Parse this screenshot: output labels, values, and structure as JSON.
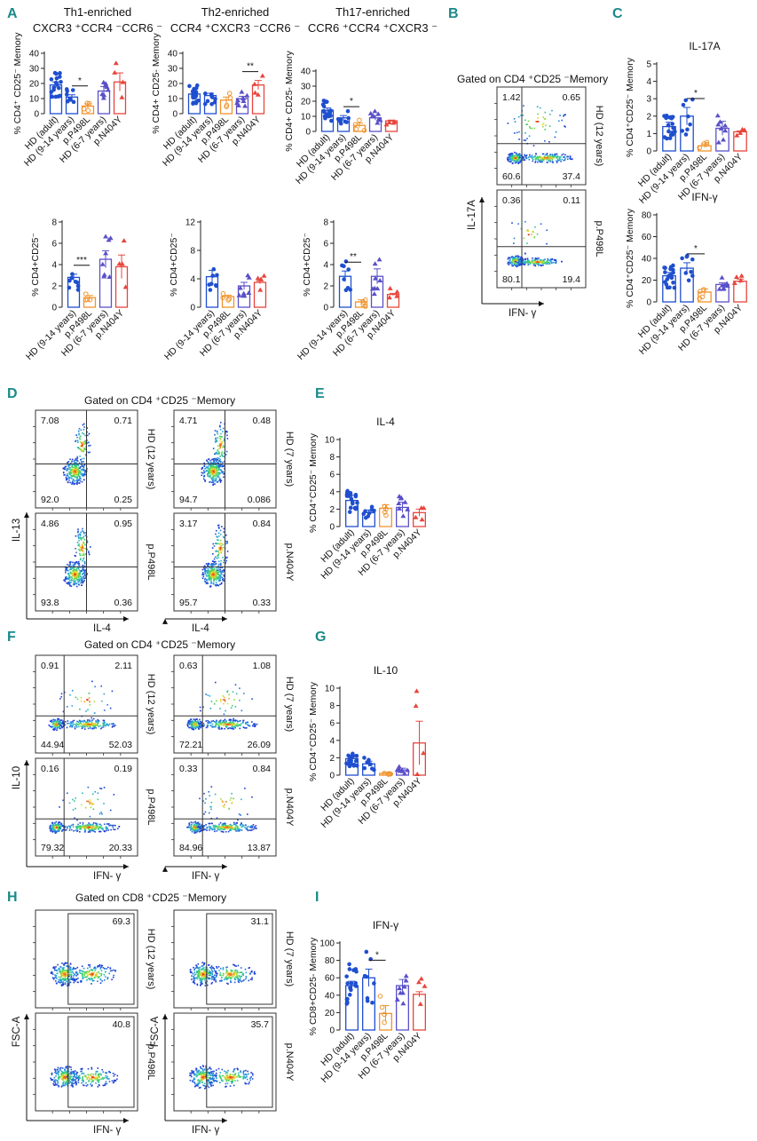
{
  "colors": {
    "teal": "#1a8a8a",
    "blue": "#1f4fcf",
    "orange": "#f0932b",
    "red": "#e8453c",
    "purple": "#5a50c8",
    "axis": "#222222"
  },
  "panels": {
    "A": "A",
    "B": "B",
    "C": "C",
    "D": "D",
    "E": "E",
    "F": "F",
    "G": "G",
    "H": "H",
    "I": "I"
  },
  "headers": {
    "th1_title": "Th1-enriched",
    "th1_markers": "CXCR3 ⁺CCR4 ⁻CCR6 ⁻",
    "th2_title": "Th2-enriched",
    "th2_markers": "CCR4 ⁺CXCR3 ⁻CCR6 ⁻",
    "th17_title": "Th17-enriched",
    "th17_markers": "CCR6 ⁺CCR4 ⁺CXCR3 ⁻"
  },
  "gating": {
    "B": "Gated on CD4 ⁺CD25 ⁻Memory",
    "D": "Gated on CD4 ⁺CD25 ⁻Memory",
    "F": "Gated on CD4 ⁺CD25 ⁻Memory",
    "H": "Gated on CD8 ⁺CD25 ⁻Memory"
  },
  "flow": {
    "B": [
      {
        "q": [
          "1.42",
          "0.65",
          "60.6",
          "37.4"
        ],
        "label": "HD (12 years)"
      },
      {
        "q": [
          "0.36",
          "0.11",
          "80.1",
          "19.4"
        ],
        "label": "p.P498L"
      }
    ],
    "B_axes": {
      "x": "IFN- γ",
      "y": "IL-17A"
    },
    "D": [
      {
        "q": [
          "7.08",
          "0.71",
          "92.0",
          "0.25"
        ],
        "label": "HD (12 years)"
      },
      {
        "q": [
          "4.71",
          "0.48",
          "94.7",
          "0.086"
        ],
        "label": "HD (7 years)"
      },
      {
        "q": [
          "4.86",
          "0.95",
          "93.8",
          "0.36"
        ],
        "label": "p.P498L"
      },
      {
        "q": [
          "3.17",
          "0.84",
          "95.7",
          "0.33"
        ],
        "label": "p.N404Y"
      }
    ],
    "D_axes": {
      "x": "IL-4",
      "y": "IL-13"
    },
    "F": [
      {
        "q": [
          "0.91",
          "2.11",
          "44.94",
          "52.03"
        ],
        "label": "HD (12 years)"
      },
      {
        "q": [
          "0.63",
          "1.08",
          "72.21",
          "26.09"
        ],
        "label": "HD (7 years)"
      },
      {
        "q": [
          "0.16",
          "0.19",
          "79.32",
          "20.33"
        ],
        "label": "p.P498L"
      },
      {
        "q": [
          "0.33",
          "0.84",
          "84.96",
          "13.87"
        ],
        "label": "p.N404Y"
      }
    ],
    "F_axes": {
      "x": "IFN- γ",
      "y": "IL-10"
    },
    "H": [
      {
        "gate": "69.3",
        "label": "HD (12 years)"
      },
      {
        "gate": "31.1",
        "label": "HD (7 years)"
      },
      {
        "gate": "40.8",
        "label": "p.P498L"
      },
      {
        "gate": "35.7",
        "label": "p.N404Y"
      }
    ],
    "H_axes": {
      "x": "IFN- γ",
      "y": "FSC-A"
    }
  },
  "chart_data": [
    {
      "id": "A_th1",
      "type": "bar",
      "title": "",
      "ylabel": "% CD4⁺ CD25⁻ Memory",
      "ylim": [
        0,
        40
      ],
      "ticks": [
        0,
        10,
        20,
        30,
        40
      ],
      "categories": [
        "HD (adult)",
        "HD (9-14 years)",
        "p.P498L",
        "HD (6-7 years)",
        "p.N404Y"
      ],
      "values": [
        19,
        11,
        5,
        15,
        21
      ],
      "errors": [
        2,
        1.5,
        1.5,
        3,
        6
      ],
      "annotations": [
        {
          "from": 1,
          "to": 2,
          "text": "*"
        }
      ]
    },
    {
      "id": "A_th2",
      "type": "bar",
      "title": "",
      "ylabel": "% CD4+ CD25- Memory",
      "ylim": [
        0,
        40
      ],
      "ticks": [
        0,
        10,
        20,
        30,
        40
      ],
      "categories": [
        "HD (adult)",
        "HD (9-14 years)",
        "p.P498L",
        "HD (6-7 years)",
        "p.N404Y"
      ],
      "values": [
        13,
        12,
        9,
        10,
        19
      ],
      "errors": [
        1.5,
        1.5,
        2,
        1.5,
        3
      ],
      "annotations": [
        {
          "from": 3,
          "to": 4,
          "text": "**"
        }
      ]
    },
    {
      "id": "A_th17",
      "type": "bar",
      "title": "",
      "ylabel": "% CD4+ CD25- Memory",
      "ylim": [
        0,
        40
      ],
      "ticks": [
        0,
        10,
        20,
        30,
        40
      ],
      "categories": [
        "HD (adult)",
        "HD (9-14 years)",
        "p.P498L",
        "HD (6-7 years)",
        "p.N404Y"
      ],
      "values": [
        14,
        9,
        4,
        9,
        7
      ],
      "errors": [
        1.5,
        1.5,
        1.5,
        1.5,
        0.5
      ],
      "annotations": [
        {
          "from": 1,
          "to": 2,
          "text": "*"
        }
      ]
    },
    {
      "id": "A_th1b",
      "type": "bar",
      "title": "",
      "ylabel": "% CD4+CD25⁻",
      "ylim": [
        0,
        8
      ],
      "ticks": [
        0,
        2,
        4,
        6,
        8
      ],
      "categories": [
        "HD (9-14 years)",
        "p.P498L",
        "HD (6-7 years)",
        "p.N404Y"
      ],
      "values": [
        2.8,
        0.9,
        4.5,
        3.8
      ],
      "errors": [
        0.3,
        0.2,
        0.8,
        1.1
      ],
      "annotations": [
        {
          "from": 0,
          "to": 1,
          "text": "***"
        }
      ]
    },
    {
      "id": "A_th2b",
      "type": "bar",
      "title": "",
      "ylabel": "% CD4+CD25⁻",
      "ylim": [
        0,
        12
      ],
      "ticks": [
        0,
        4,
        8,
        12
      ],
      "categories": [
        "HD (9-14 years)",
        "p.P498L",
        "HD (6-7 years)",
        "p.N404Y"
      ],
      "values": [
        4.3,
        1.5,
        3.0,
        3.5
      ],
      "errors": [
        0.9,
        0.2,
        0.5,
        0.2
      ],
      "annotations": []
    },
    {
      "id": "A_th17b",
      "type": "bar",
      "title": "",
      "ylabel": "% CD4+CD25⁻",
      "ylim": [
        0,
        8
      ],
      "ticks": [
        0,
        2,
        4,
        6,
        8
      ],
      "categories": [
        "HD (9-14 years)",
        "p.P498L",
        "HD (6-7 years)",
        "p.N404Y"
      ],
      "values": [
        2.9,
        0.5,
        2.9,
        1.2
      ],
      "errors": [
        0.5,
        0.2,
        0.7,
        0.1
      ],
      "annotations": [
        {
          "from": 0,
          "to": 1,
          "text": "**"
        }
      ]
    },
    {
      "id": "C_il17",
      "type": "bar",
      "title": "IL-17A",
      "ylabel": "% CD4⁺CD25⁻ Memory",
      "ylim": [
        0,
        5
      ],
      "ticks": [
        0,
        1,
        2,
        3,
        4,
        5
      ],
      "categories": [
        "HD (adult)",
        "HD (9-14 years)",
        "p.P498L",
        "HD (6-7 years)",
        "p.N404Y"
      ],
      "values": [
        1.4,
        2.0,
        0.3,
        1.3,
        1.1
      ],
      "errors": [
        0.25,
        0.5,
        0.1,
        0.4,
        0.05
      ],
      "annotations": [
        {
          "from": 1,
          "to": 2,
          "text": "*"
        }
      ]
    },
    {
      "id": "C_ifn",
      "type": "bar",
      "title": "IFN-γ",
      "ylabel": "% CD4⁺CD25⁻ Memory",
      "ylim": [
        0,
        80
      ],
      "ticks": [
        0,
        20,
        40,
        60,
        80
      ],
      "categories": [
        "HD (adult)",
        "HD (9-14 years)",
        "p.P498L",
        "HD (6-7 years)",
        "p.N404Y"
      ],
      "values": [
        24,
        31,
        9,
        16,
        19
      ],
      "errors": [
        3,
        5,
        3,
        1.5,
        2
      ],
      "annotations": [
        {
          "from": 1,
          "to": 2,
          "text": "*"
        }
      ]
    },
    {
      "id": "E_il4",
      "type": "bar",
      "title": "IL-4",
      "ylabel": "% CD4⁺CD25⁻ Memory",
      "ylim": [
        0,
        10
      ],
      "ticks": [
        0,
        2,
        4,
        6,
        8,
        10
      ],
      "categories": [
        "HD (adult)",
        "HD (9-14 years)",
        "p.P498L",
        "HD (6-7 years)",
        "p.N404Y"
      ],
      "values": [
        3.0,
        1.6,
        2.1,
        2.2,
        1.6
      ],
      "errors": [
        0.6,
        0.3,
        0.4,
        0.6,
        0.4
      ],
      "annotations": []
    },
    {
      "id": "G_il10",
      "type": "bar",
      "title": "IL-10",
      "ylabel": "% CD4⁺CD25⁻ Memory",
      "ylim": [
        0,
        10
      ],
      "ticks": [
        0,
        2,
        4,
        6,
        8,
        10
      ],
      "categories": [
        "HD (adult)",
        "HD (9-14 years)",
        "p.P498L",
        "HD (6-7 years)",
        "p.N404Y"
      ],
      "values": [
        1.9,
        1.3,
        0.2,
        0.6,
        3.7
      ],
      "errors": [
        0.4,
        0.3,
        0.1,
        0.2,
        2.5
      ],
      "annotations": []
    },
    {
      "id": "I_ifn",
      "type": "bar",
      "title": "IFN-γ",
      "ylabel": "% CD8+CD25- Memory",
      "ylim": [
        0,
        100
      ],
      "ticks": [
        0,
        20,
        40,
        60,
        80,
        100
      ],
      "categories": [
        "HD (adult)",
        "HD (9-14 years)",
        "p.P498L",
        "HD (6-7 years)",
        "p.N404Y"
      ],
      "values": [
        51,
        60,
        19,
        51,
        41
      ],
      "errors": [
        5,
        10,
        9,
        7,
        3
      ],
      "annotations": [
        {
          "from": 1,
          "to": 2,
          "text": "*"
        }
      ]
    }
  ]
}
